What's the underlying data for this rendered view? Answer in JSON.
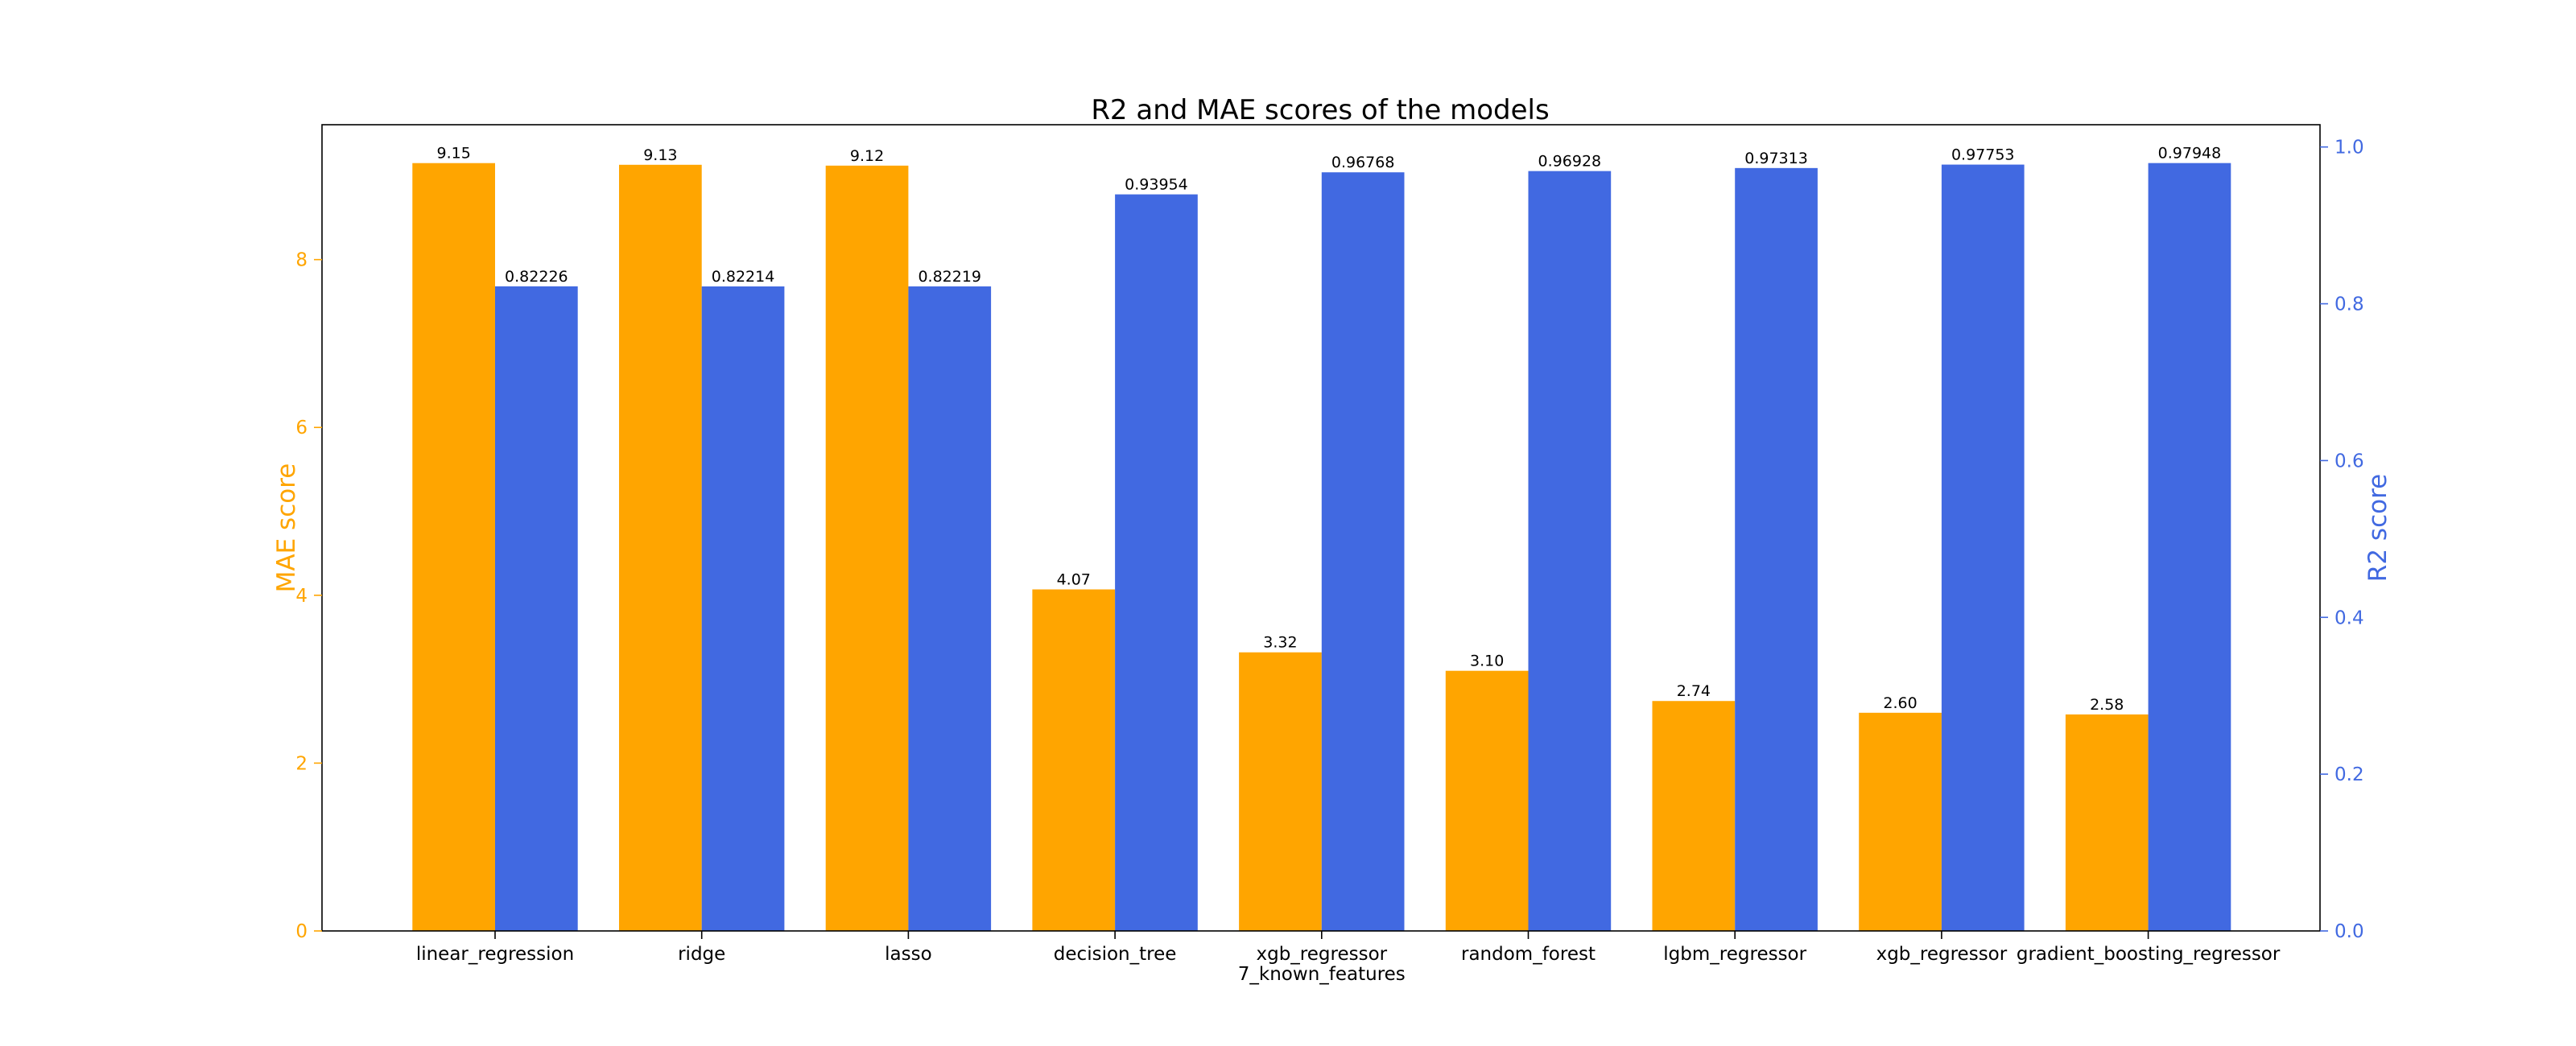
{
  "chart_data": {
    "type": "bar",
    "title": "R2 and MAE scores of the models",
    "categories": [
      "linear_regression",
      "ridge",
      "lasso",
      "decision_tree",
      "xgb_regressor\n7_known_features",
      "random_forest",
      "lgbm_regressor",
      "xgb_regressor",
      "gradient_boosting_regressor"
    ],
    "series": [
      {
        "name": "MAE score",
        "axis": "left",
        "color": "#FFA500",
        "values": [
          9.15,
          9.13,
          9.12,
          4.07,
          3.32,
          3.1,
          2.74,
          2.6,
          2.58
        ],
        "labels": [
          "9.15",
          "9.13",
          "9.12",
          "4.07",
          "3.32",
          "3.10",
          "2.74",
          "2.60",
          "2.58"
        ]
      },
      {
        "name": "R2 score",
        "axis": "right",
        "color": "#4169E1",
        "values": [
          0.82226,
          0.82214,
          0.82219,
          0.93954,
          0.96768,
          0.96928,
          0.97313,
          0.97753,
          0.97948
        ],
        "labels": [
          "0.82226",
          "0.82214",
          "0.82219",
          "0.93954",
          "0.96768",
          "0.96928",
          "0.97313",
          "0.97753",
          "0.97948"
        ]
      }
    ],
    "left_axis": {
      "label": "MAE score",
      "color": "#FFA500",
      "ylim": [
        0,
        9.6075
      ],
      "ticks": [
        0,
        2,
        4,
        6,
        8
      ],
      "tick_labels": [
        "0",
        "2",
        "4",
        "6",
        "8"
      ]
    },
    "right_axis": {
      "label": "R2 score",
      "color": "#4169E1",
      "ylim": [
        0,
        1.0284
      ],
      "ticks": [
        0.0,
        0.2,
        0.4,
        0.6,
        0.8,
        1.0
      ],
      "tick_labels": [
        "0.0",
        "0.2",
        "0.4",
        "0.6",
        "0.8",
        "1.0"
      ]
    },
    "grid": false,
    "legend": "none"
  }
}
